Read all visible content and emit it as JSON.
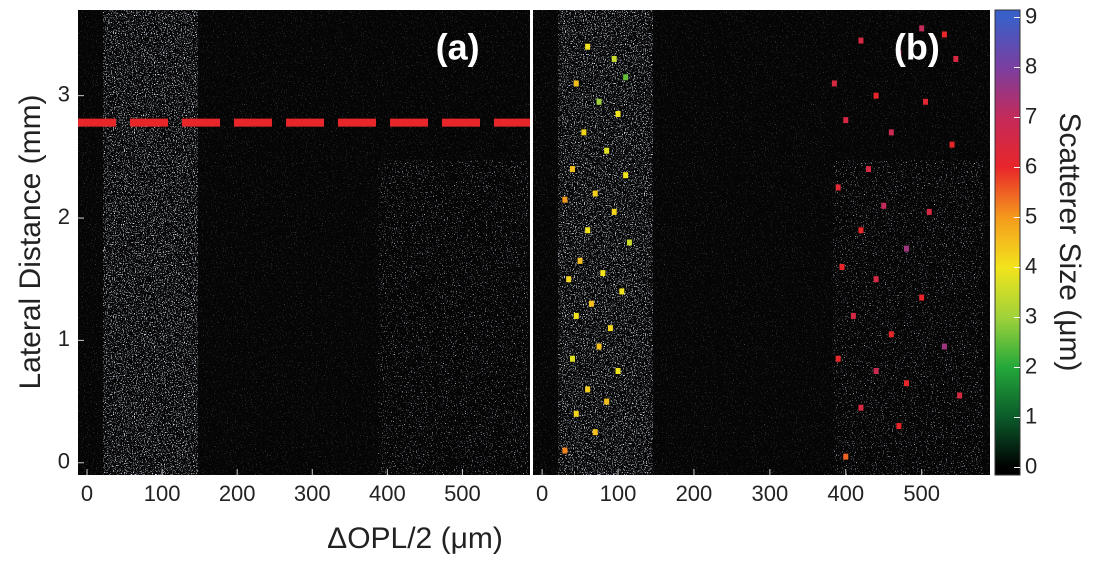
{
  "chart_data": {
    "type": "image",
    "xlabel": "ΔOPL/2 (μm)",
    "ylabel": "Lateral Distance (mm)",
    "xlim": [
      -12,
      590
    ],
    "ylim": [
      -0.1,
      3.7
    ],
    "xticks": [
      0,
      100,
      200,
      300,
      400,
      500
    ],
    "yticks": [
      0,
      1,
      2,
      3
    ],
    "panels": [
      {
        "label": "(a)",
        "hline": {
          "y": 2.78,
          "color": "#e8262a"
        }
      },
      {
        "label": "(b)",
        "points": {
          "x": [
            60,
            95,
            110,
            45,
            75,
            100,
            55,
            85,
            40,
            110,
            70,
            30,
            95,
            60,
            115,
            50,
            80,
            35,
            105,
            65,
            45,
            90,
            75,
            40,
            100,
            60,
            85,
            45,
            70,
            30,
            500,
            530,
            420,
            470,
            545,
            385,
            440,
            505,
            400,
            460,
            540,
            430,
            390,
            450,
            510,
            420,
            480,
            395,
            440,
            500,
            410,
            460,
            530,
            390,
            440,
            480,
            550,
            420,
            470,
            400
          ],
          "y": [
            3.4,
            3.3,
            3.15,
            3.1,
            2.95,
            2.85,
            2.7,
            2.55,
            2.4,
            2.35,
            2.2,
            2.15,
            2.05,
            1.9,
            1.8,
            1.65,
            1.55,
            1.5,
            1.4,
            1.3,
            1.2,
            1.1,
            0.95,
            0.85,
            0.75,
            0.6,
            0.5,
            0.4,
            0.25,
            0.1,
            3.55,
            3.5,
            3.45,
            3.35,
            3.3,
            3.1,
            3.0,
            2.95,
            2.8,
            2.7,
            2.6,
            2.4,
            2.25,
            2.1,
            2.05,
            1.9,
            1.75,
            1.6,
            1.5,
            1.35,
            1.2,
            1.05,
            0.95,
            0.85,
            0.75,
            0.65,
            0.55,
            0.45,
            0.3,
            0.05
          ],
          "size": [
            4,
            3.5,
            2.5,
            4.5,
            3,
            4,
            4.2,
            3.8,
            4.5,
            4,
            4.3,
            5,
            4.2,
            4,
            3.5,
            4.5,
            4,
            4.2,
            4,
            4.5,
            4,
            4.2,
            4.5,
            3.8,
            4,
            4.3,
            4.5,
            4.2,
            4.5,
            5.2,
            7,
            6,
            6.5,
            6.8,
            6.5,
            6.5,
            6,
            6.2,
            6.5,
            6.8,
            6,
            6.5,
            6.2,
            7,
            6.5,
            6,
            7.5,
            6,
            6.5,
            6,
            6.5,
            6,
            7.5,
            6,
            6.8,
            6,
            6.5,
            6.5,
            6,
            5.5
          ]
        }
      }
    ],
    "colorbar": {
      "label": "Scatterer Size (μm)",
      "lim": [
        -0.15,
        9.15
      ],
      "ticks": [
        0,
        1,
        2,
        3,
        4,
        5,
        6,
        7,
        8,
        9
      ],
      "colors": [
        "#000000",
        "#0b5a2a",
        "#23a83a",
        "#9fd23a",
        "#f2e41c",
        "#f59a1c",
        "#e8262a",
        "#c42a5a",
        "#7a3fa0",
        "#3a5fc8"
      ]
    }
  }
}
